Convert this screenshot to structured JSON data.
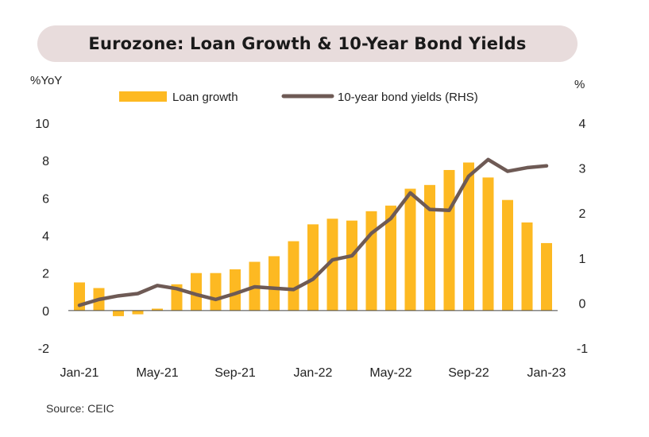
{
  "title": "Eurozone: Loan Growth & 10-Year Bond Yields",
  "source": "Source: CEIC",
  "colors": {
    "title_bg": "#e8dcdc",
    "bar": "#fdb922",
    "line": "#6e5a55",
    "axis": "#444444"
  },
  "chart_data": {
    "type": "bar+line",
    "left_axis": {
      "unit_label": "%YoY",
      "ylim": [
        -2,
        10
      ],
      "ticks": [
        "10",
        "8",
        "6",
        "4",
        "2",
        "0",
        "-2"
      ]
    },
    "right_axis": {
      "unit_label": "%",
      "ylim": [
        -1,
        4
      ],
      "ticks": [
        "4",
        "3",
        "2",
        "1",
        "0",
        "-1"
      ]
    },
    "x_tick_labels": [
      "Jan-21",
      "May-21",
      "Sep-21",
      "Jan-22",
      "May-22",
      "Sep-22",
      "Jan-23"
    ],
    "categories": [
      "Jan-21",
      "Feb-21",
      "Mar-21",
      "Apr-21",
      "May-21",
      "Jun-21",
      "Jul-21",
      "Aug-21",
      "Sep-21",
      "Oct-21",
      "Nov-21",
      "Dec-21",
      "Jan-22",
      "Feb-22",
      "Mar-22",
      "Apr-22",
      "May-22",
      "Jun-22",
      "Jul-22",
      "Aug-22",
      "Sep-22",
      "Oct-22",
      "Nov-22",
      "Dec-22",
      "Jan-23"
    ],
    "series": [
      {
        "name": "Loan growth",
        "type": "bar",
        "axis": "left",
        "values": [
          1.5,
          1.2,
          -0.3,
          -0.2,
          0.1,
          1.4,
          2.0,
          2.0,
          2.2,
          2.6,
          2.9,
          3.7,
          4.6,
          4.9,
          4.8,
          5.3,
          5.6,
          6.5,
          6.7,
          7.5,
          7.9,
          7.1,
          5.9,
          4.7,
          3.6
        ]
      },
      {
        "name": "10-year bond yields (RHS)",
        "type": "line",
        "axis": "right",
        "values": [
          -0.05,
          0.08,
          0.16,
          0.21,
          0.39,
          0.32,
          0.19,
          0.08,
          0.21,
          0.36,
          0.33,
          0.3,
          0.53,
          0.96,
          1.05,
          1.55,
          1.88,
          2.45,
          2.08,
          2.06,
          2.82,
          3.19,
          2.93,
          3.01,
          3.05
        ]
      }
    ],
    "legend_position": "top-center",
    "grid": false
  }
}
